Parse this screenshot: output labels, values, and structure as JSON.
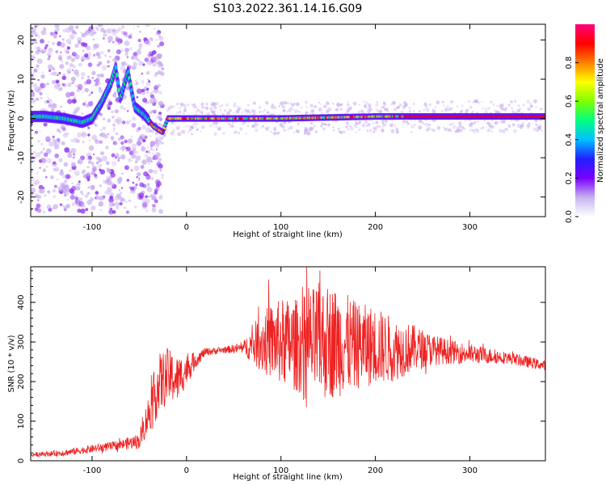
{
  "figure_title": "S103.2022.361.14.16.G09",
  "chart_data": [
    {
      "type": "heatmap",
      "title": "S103.2022.361.14.16.G09",
      "xlabel": "Height of straight line (km)",
      "ylabel": "Frequency (Hz)",
      "xlim": [
        -165,
        380
      ],
      "ylim": [
        -25,
        24
      ],
      "x_ticks": [
        -100,
        0,
        100,
        200,
        300
      ],
      "y_ticks": [
        -20,
        -10,
        0,
        10,
        20
      ],
      "colorbar": {
        "label": "Normalized spectral amplitude",
        "range": [
          0,
          1
        ],
        "ticks": [
          "0.0",
          "0.2",
          "0.4",
          "0.6",
          "0.8"
        ],
        "colors": [
          "#ffffff",
          "#c7b3f2",
          "#7a00ff",
          "#2020ff",
          "#00c0ff",
          "#00ff80",
          "#80ff00",
          "#ffff00",
          "#ff8000",
          "#ff0000",
          "#ff0080"
        ]
      },
      "ridge_points": [
        {
          "x": -150,
          "y": 0.5
        },
        {
          "x": -130,
          "y": 0.0
        },
        {
          "x": -110,
          "y": -1.0
        },
        {
          "x": -100,
          "y": 0.0
        },
        {
          "x": -90,
          "y": 4.0
        },
        {
          "x": -80,
          "y": 9.0
        },
        {
          "x": -75,
          "y": 13.0
        },
        {
          "x": -70,
          "y": 5.0
        },
        {
          "x": -62,
          "y": 12.0
        },
        {
          "x": -55,
          "y": 3.0
        },
        {
          "x": -45,
          "y": 1.0
        },
        {
          "x": -35,
          "y": -2.0
        },
        {
          "x": -25,
          "y": -3.5
        },
        {
          "x": -20,
          "y": 0.0
        },
        {
          "x": 0,
          "y": 0.0
        },
        {
          "x": 100,
          "y": 0.0
        },
        {
          "x": 200,
          "y": 0.5
        },
        {
          "x": 300,
          "y": 0.5
        },
        {
          "x": 380,
          "y": 0.5
        }
      ]
    },
    {
      "type": "line",
      "xlabel": "Height of straight line (km)",
      "ylabel": "SNR (10 * v/v)",
      "xlim": [
        -165,
        380
      ],
      "ylim": [
        0,
        490
      ],
      "x_ticks": [
        -100,
        0,
        100,
        200,
        300
      ],
      "y_ticks": [
        0,
        100,
        200,
        300,
        400
      ],
      "line_color": "#ee2222",
      "envelope": {
        "x": [
          -165,
          -130,
          -100,
          -70,
          -50,
          -40,
          -30,
          -20,
          -10,
          0,
          10,
          20,
          40,
          60,
          80,
          100,
          120,
          140,
          160,
          180,
          200,
          220,
          240,
          260,
          280,
          300,
          320,
          340,
          360,
          380
        ],
        "mean": [
          15,
          20,
          30,
          40,
          50,
          120,
          190,
          215,
          205,
          230,
          255,
          275,
          280,
          285,
          300,
          300,
          290,
          300,
          300,
          290,
          290,
          280,
          285,
          280,
          275,
          270,
          265,
          260,
          250,
          240
        ],
        "amplitude": [
          5,
          8,
          10,
          12,
          20,
          50,
          80,
          70,
          60,
          40,
          20,
          10,
          8,
          15,
          80,
          110,
          120,
          150,
          140,
          110,
          100,
          80,
          60,
          40,
          30,
          25,
          20,
          15,
          15,
          12
        ]
      }
    }
  ]
}
